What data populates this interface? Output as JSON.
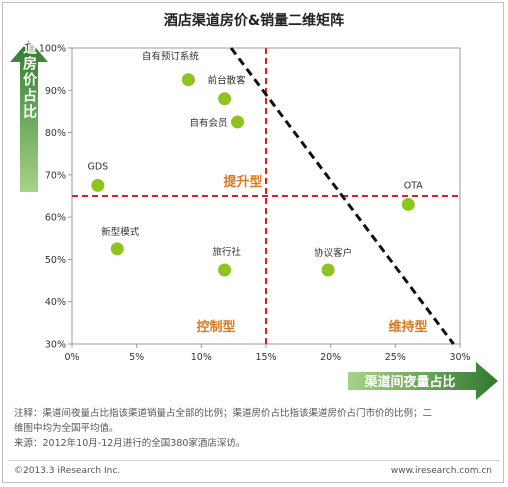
{
  "chart_data": {
    "type": "scatter",
    "title": "酒店渠道房价&销量二维矩阵",
    "xlabel": "渠道间夜量占比",
    "ylabel": "渠道房价占比",
    "xlim": [
      0,
      30
    ],
    "ylim": [
      30,
      100
    ],
    "x_ticks": [
      "0%",
      "5%",
      "10%",
      "15%",
      "20%",
      "25%",
      "30%"
    ],
    "y_ticks": [
      "30%",
      "40%",
      "50%",
      "60%",
      "70%",
      "80%",
      "90%",
      "100%"
    ],
    "points": [
      {
        "label": "自有预订系统",
        "x": 9.0,
        "y": 92.5
      },
      {
        "label": "前台散客",
        "x": 11.8,
        "y": 88.0
      },
      {
        "label": "自有会员",
        "x": 12.8,
        "y": 82.5
      },
      {
        "label": "GDS",
        "x": 2.0,
        "y": 67.5
      },
      {
        "label": "OTA",
        "x": 26.0,
        "y": 63.0
      },
      {
        "label": "新型模式",
        "x": 3.5,
        "y": 52.5
      },
      {
        "label": "旅行社",
        "x": 11.8,
        "y": 47.5
      },
      {
        "label": "协议客户",
        "x": 19.8,
        "y": 47.5
      }
    ],
    "ref_lines": {
      "vertical_x": 15,
      "horizontal_y": 65
    },
    "trend_line": {
      "from": [
        12.3,
        100
      ],
      "to": [
        29.5,
        30
      ]
    },
    "quadrant_labels": [
      "提升型",
      "控制型",
      "维持型"
    ],
    "grid": false,
    "colors": {
      "point": "#8fc31f",
      "ref_line": "#e02020",
      "trend": "#111111",
      "quadrant_label": "#e07820",
      "arrow": "#3c8a3c"
    }
  },
  "notes": {
    "line1": "注释：渠道间夜量占比指该渠道销量占全部的比例；渠道房价占比指该渠道房价占门市价的比例；二",
    "line2": "维图中均为全国平均值。",
    "line3": "来源：2012年10月-12月进行的全国380家酒店深访。"
  },
  "footer": {
    "copyright": "©2013.3 iResearch Inc.",
    "website": "www.iresearch.com.cn"
  }
}
